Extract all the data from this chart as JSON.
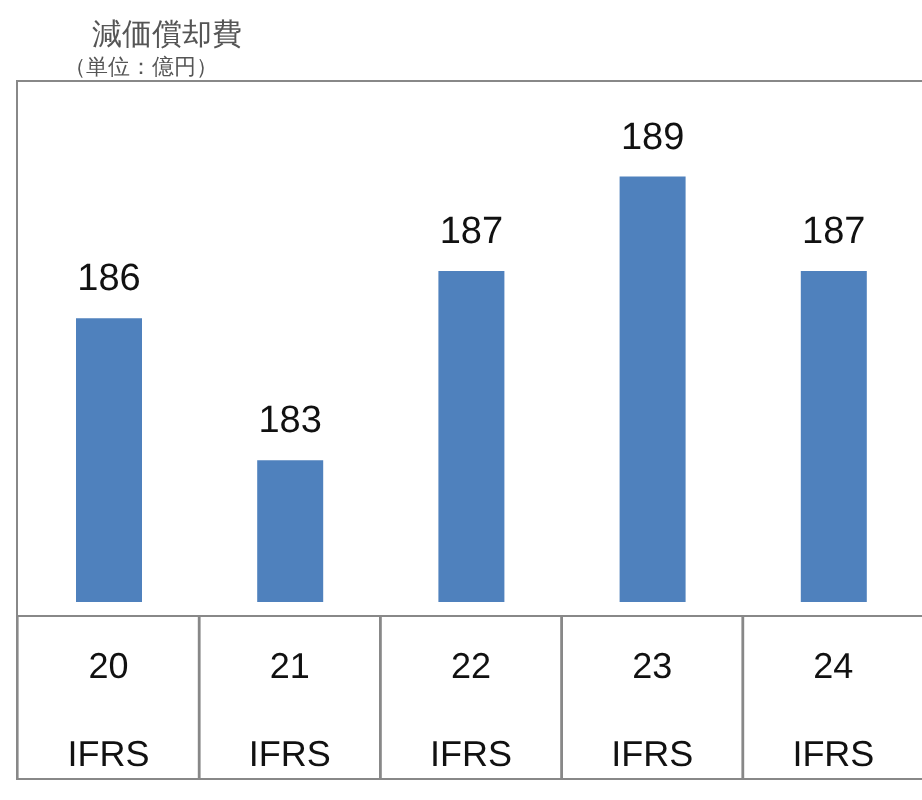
{
  "chart_data": {
    "type": "bar",
    "title": "減価償却費",
    "subtitle": "（単位：億円）",
    "categories": [
      "20\nIFRS",
      "21\nIFRS",
      "22\nIFRS",
      "23\nIFRS",
      "24\nIFRS"
    ],
    "values": [
      186,
      183,
      187,
      189,
      187
    ],
    "color": "#4f81bd",
    "data_labels": true,
    "ylim": [
      180,
      191
    ],
    "grid": false
  }
}
